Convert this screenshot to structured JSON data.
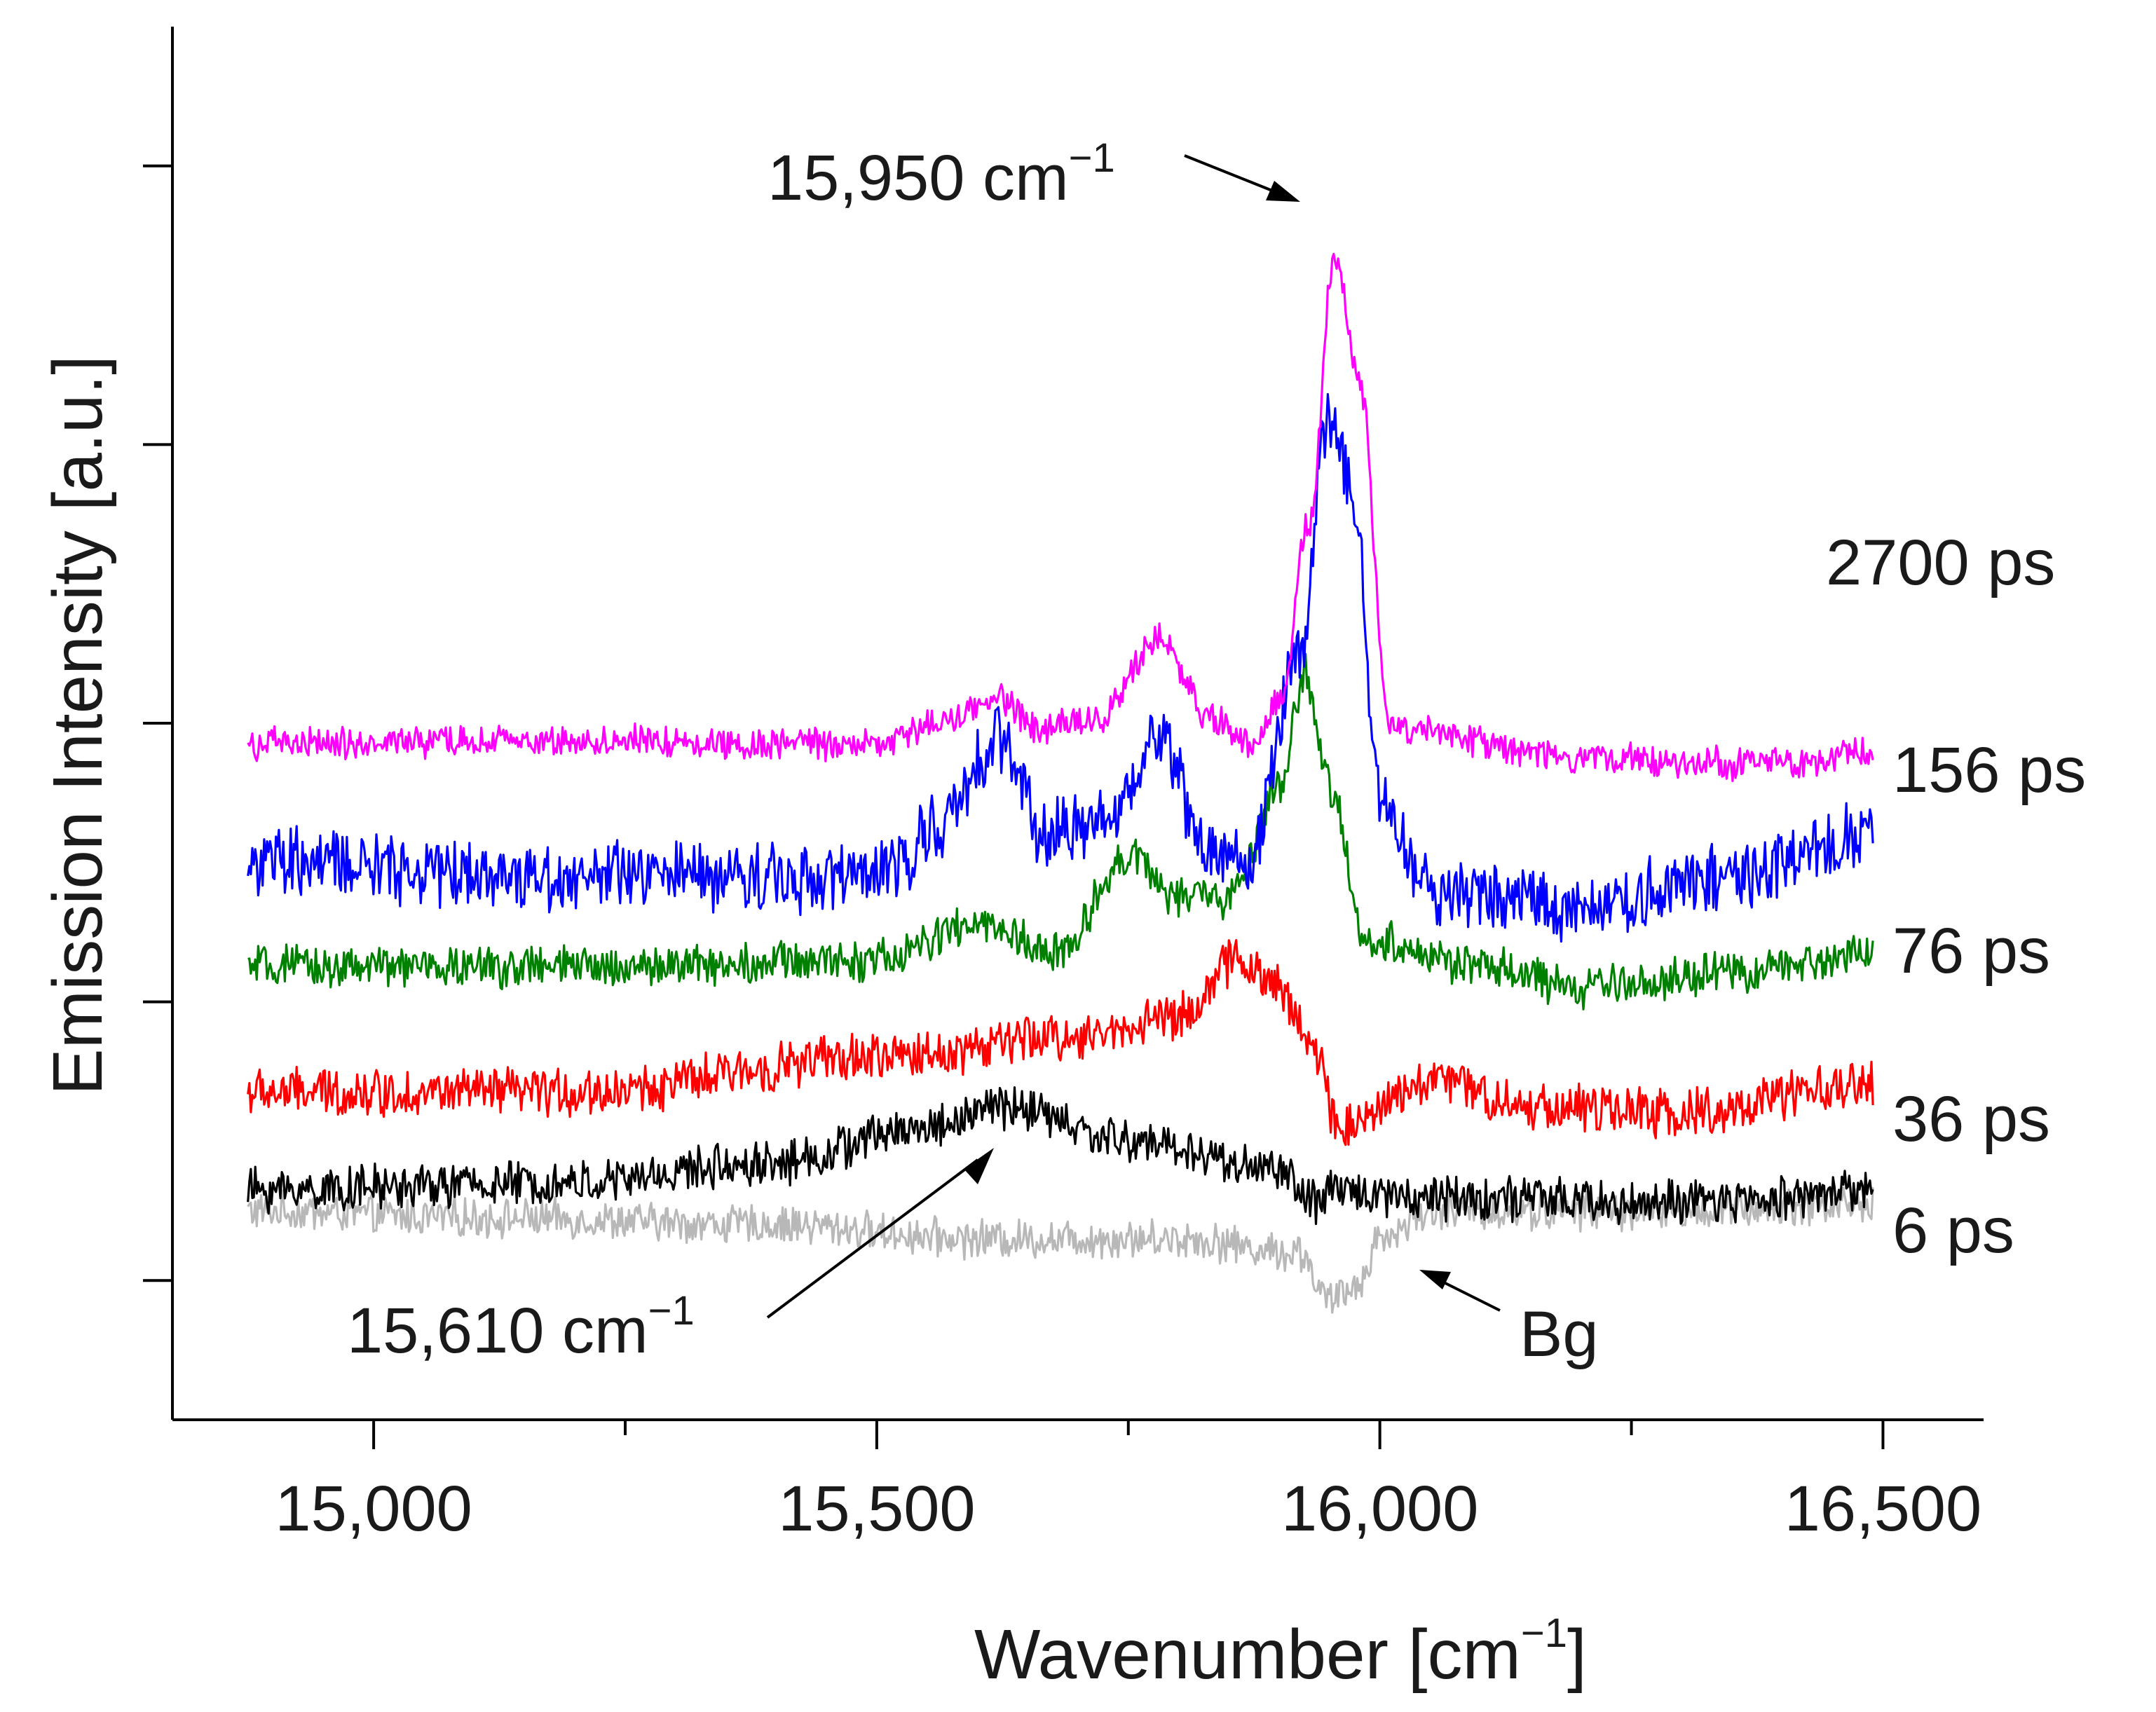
{
  "chart_data": {
    "type": "line",
    "title": "",
    "xlabel": "Wavenumber [cm",
    "xlabel_sup": "−1",
    "xlabel_end": "]",
    "ylabel": "Emission Intensity [a.u.]",
    "xlim": [
      14800,
      16600
    ],
    "ylim": [
      0,
      10
    ],
    "x_ticks": [
      15000,
      15500,
      16000,
      16500
    ],
    "x_tick_labels": [
      "15,000",
      "15,500",
      "16,000",
      "16,500"
    ],
    "x_minor_ticks": [
      15250,
      15750,
      16250
    ],
    "y_ticks": [
      1,
      3,
      5,
      7,
      9
    ],
    "y_tick_labels_shown": false,
    "x_range_data": [
      14875,
      16490
    ],
    "series": [
      {
        "name": "Bg",
        "label": "Bg",
        "color": "#b8b8b8",
        "offset": 1.5,
        "noise": 0.12,
        "points": [
          [
            14875,
            0
          ],
          [
            15100,
            -0.05
          ],
          [
            15400,
            -0.1
          ],
          [
            15600,
            -0.2
          ],
          [
            15800,
            -0.2
          ],
          [
            15920,
            -0.3
          ],
          [
            15950,
            -0.65
          ],
          [
            15975,
            -0.55
          ],
          [
            16000,
            -0.2
          ],
          [
            16050,
            0
          ],
          [
            16300,
            0
          ],
          [
            16490,
            0.05
          ]
        ]
      },
      {
        "name": "6 ps",
        "label": "6 ps",
        "color": "#000000",
        "offset": 1.65,
        "noise": 0.14,
        "points": [
          [
            14875,
            0
          ],
          [
            15200,
            0.05
          ],
          [
            15400,
            0.2
          ],
          [
            15550,
            0.45
          ],
          [
            15625,
            0.6
          ],
          [
            15750,
            0.35
          ],
          [
            15900,
            0.15
          ],
          [
            15935,
            -0.1
          ],
          [
            15960,
            0
          ],
          [
            16050,
            -0.05
          ],
          [
            16300,
            -0.1
          ],
          [
            16490,
            0
          ]
        ]
      },
      {
        "name": "36 ps",
        "label": "36 ps",
        "color": "#ff0000",
        "offset": 2.35,
        "noise": 0.15,
        "points": [
          [
            14875,
            0
          ],
          [
            15200,
            0
          ],
          [
            15500,
            0.25
          ],
          [
            15700,
            0.4
          ],
          [
            15800,
            0.55
          ],
          [
            15860,
            0.95
          ],
          [
            15900,
            0.75
          ],
          [
            15935,
            0.3
          ],
          [
            15960,
            -0.25
          ],
          [
            16000,
            -0.1
          ],
          [
            16050,
            0.1
          ],
          [
            16150,
            -0.1
          ],
          [
            16300,
            -0.15
          ],
          [
            16490,
            0.05
          ]
        ]
      },
      {
        "name": "76 ps",
        "label": "76 ps",
        "color": "#008000",
        "offset": 3.25,
        "noise": 0.13,
        "points": [
          [
            14875,
            0
          ],
          [
            15200,
            0
          ],
          [
            15500,
            0.05
          ],
          [
            15600,
            0.3
          ],
          [
            15680,
            0.1
          ],
          [
            15750,
            0.8
          ],
          [
            15800,
            0.5
          ],
          [
            15850,
            0.5
          ],
          [
            15900,
            1.25
          ],
          [
            15925,
            2.1
          ],
          [
            15950,
            1.3
          ],
          [
            15985,
            0.2
          ],
          [
            16100,
            0
          ],
          [
            16200,
            -0.15
          ],
          [
            16350,
            -0.05
          ],
          [
            16490,
            0.1
          ]
        ]
      },
      {
        "name": "156 ps",
        "label": "156 ps",
        "color": "#0000ff",
        "offset": 4.0,
        "noise": 0.22,
        "points": [
          [
            14875,
            0
          ],
          [
            15200,
            -0.1
          ],
          [
            15500,
            -0.1
          ],
          [
            15570,
            0.3
          ],
          [
            15620,
            0.9
          ],
          [
            15670,
            0.2
          ],
          [
            15730,
            0.3
          ],
          [
            15780,
            0.9
          ],
          [
            15830,
            0.1
          ],
          [
            15870,
            0.0
          ],
          [
            15920,
            1.5
          ],
          [
            15950,
            3.2
          ],
          [
            15975,
            2.6
          ],
          [
            16000,
            0.4
          ],
          [
            16050,
            -0.2
          ],
          [
            16200,
            -0.3
          ],
          [
            16350,
            -0.1
          ],
          [
            16490,
            0.2
          ]
        ]
      },
      {
        "name": "2700 ps",
        "label": "2700 ps",
        "color": "#ff00ff",
        "offset": 4.85,
        "noise": 0.1,
        "points": [
          [
            14875,
            0
          ],
          [
            15200,
            0.02
          ],
          [
            15500,
            0
          ],
          [
            15580,
            0.2
          ],
          [
            15620,
            0.35
          ],
          [
            15660,
            0.1
          ],
          [
            15720,
            0.2
          ],
          [
            15780,
            0.75
          ],
          [
            15830,
            0.2
          ],
          [
            15870,
            0.0
          ],
          [
            15900,
            0.3
          ],
          [
            15930,
            1.6
          ],
          [
            15955,
            3.5
          ],
          [
            15980,
            2.6
          ],
          [
            16010,
            0.1
          ],
          [
            16200,
            -0.1
          ],
          [
            16400,
            -0.15
          ],
          [
            16490,
            -0.05
          ]
        ]
      }
    ],
    "annotations": [
      {
        "text": "15,950 cm",
        "sup": "−1"
      },
      {
        "text": "15,610 cm",
        "sup": "−1"
      },
      {
        "text": "Bg",
        "sup": ""
      }
    ]
  }
}
